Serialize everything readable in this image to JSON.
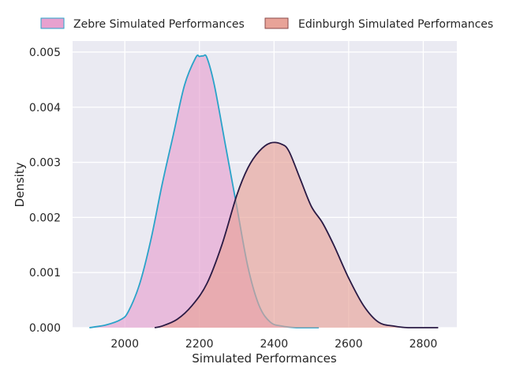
{
  "chart_data": {
    "type": "area",
    "title": "",
    "xlabel": "Simulated Performances",
    "ylabel": "Density",
    "xlim": [
      1860,
      2890
    ],
    "ylim": [
      0,
      0.0052
    ],
    "xticks": [
      2000,
      2200,
      2400,
      2600,
      2800
    ],
    "xtick_labels": [
      "2000",
      "2200",
      "2400",
      "2600",
      "2800"
    ],
    "yticks": [
      0.0,
      0.001,
      0.002,
      0.003,
      0.004,
      0.005
    ],
    "ytick_labels": [
      "0.000",
      "0.001",
      "0.002",
      "0.003",
      "0.004",
      "0.005"
    ],
    "grid": true,
    "legend_position": "top",
    "series": [
      {
        "name": "Zebre Simulated Performances",
        "fill_color": "#e7a1cf",
        "line_color": "#2aa3c9",
        "x": [
          1905,
          1950,
          1990,
          2010,
          2040,
          2070,
          2100,
          2130,
          2160,
          2190,
          2200,
          2210,
          2220,
          2240,
          2270,
          2300,
          2330,
          2360,
          2390,
          2420,
          2460,
          2520
        ],
        "y": [
          0.0,
          5e-05,
          0.00015,
          0.0003,
          0.0008,
          0.0016,
          0.0026,
          0.0035,
          0.0044,
          0.0049,
          0.00492,
          0.00493,
          0.0049,
          0.0044,
          0.0033,
          0.0022,
          0.0011,
          0.0004,
          0.0001,
          3e-05,
          0.0,
          0.0
        ]
      },
      {
        "name": "Edinburgh Simulated Performances",
        "fill_color": "#e8a398",
        "line_color": "#2a1a44",
        "x": [
          2080,
          2100,
          2140,
          2180,
          2220,
          2260,
          2300,
          2330,
          2360,
          2390,
          2420,
          2440,
          2470,
          2500,
          2530,
          2560,
          2600,
          2640,
          2680,
          2720,
          2760,
          2840
        ],
        "y": [
          0.0,
          3e-05,
          0.00015,
          0.0004,
          0.0008,
          0.0015,
          0.0024,
          0.0029,
          0.0032,
          0.00335,
          0.00333,
          0.0032,
          0.0027,
          0.0022,
          0.0019,
          0.0015,
          0.0009,
          0.0004,
          0.0001,
          3e-05,
          0.0,
          0.0
        ]
      }
    ]
  }
}
